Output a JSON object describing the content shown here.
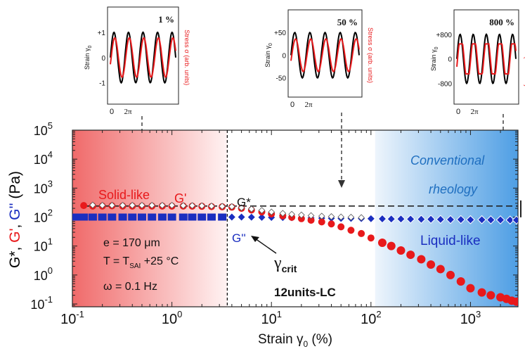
{
  "chart_data": [
    {
      "type": "scatter",
      "xscale": "log",
      "yscale": "log",
      "xlim": [
        0.1,
        3000
      ],
      "ylim": [
        0.08,
        100000
      ],
      "xlabel_main": "Strain γ",
      "xlabel_sub": "0",
      "xlabel_unit": "(%)",
      "ylabel_parts": [
        {
          "text": "G*, ",
          "color": "#000000"
        },
        {
          "text": "G'",
          "color": "#e8191b"
        },
        {
          "text": ", ",
          "color": "#000000"
        },
        {
          "text": "G''",
          "color": "#1a2ec0"
        },
        {
          "text": " (Pa)",
          "color": "#000000"
        }
      ],
      "x_ticks": [
        {
          "base": "10",
          "exp": "-1"
        },
        {
          "base": "10",
          "exp": "0"
        },
        {
          "base": "10",
          "exp": "1"
        },
        {
          "base": "10",
          "exp": "2"
        },
        {
          "base": "10",
          "exp": "3"
        }
      ],
      "y_ticks": [
        {
          "base": "10",
          "exp": "-1"
        },
        {
          "base": "10",
          "exp": "0"
        },
        {
          "base": "10",
          "exp": "1"
        },
        {
          "base": "10",
          "exp": "2"
        },
        {
          "base": "10",
          "exp": "3"
        },
        {
          "base": "10",
          "exp": "4"
        },
        {
          "base": "10",
          "exp": "5"
        }
      ],
      "regions": {
        "solid_end": 3.6,
        "conventional_start": 110
      },
      "gstar_level": 240,
      "series": [
        {
          "name": "G'",
          "color": "#e8191b",
          "x": [
            0.13,
            0.16,
            0.2,
            0.25,
            0.32,
            0.4,
            0.5,
            0.63,
            0.8,
            1.0,
            1.3,
            1.6,
            2.0,
            2.5,
            3.2,
            4,
            5,
            6.3,
            8,
            10,
            13,
            16,
            20,
            25,
            32,
            40,
            50,
            63,
            80,
            100,
            130,
            160,
            200,
            250,
            320,
            400,
            500,
            630,
            800,
            1000,
            1300,
            1600,
            2000,
            2300,
            2600,
            2900
          ],
          "y": [
            250,
            240,
            240,
            245,
            240,
            240,
            238,
            240,
            240,
            238,
            240,
            238,
            236,
            230,
            226,
            220,
            200,
            175,
            150,
            128,
            110,
            98,
            88,
            78,
            68,
            58,
            46,
            35,
            27,
            19,
            13,
            10,
            7,
            5,
            3.5,
            2.3,
            1.6,
            1.0,
            0.6,
            0.35,
            0.25,
            0.2,
            0.17,
            0.15,
            0.13,
            0.12
          ]
        },
        {
          "name": "G''",
          "color": "#1a2ec0",
          "x": [
            0.11,
            0.13,
            0.16,
            0.2,
            0.25,
            0.32,
            0.4,
            0.5,
            0.63,
            0.8,
            1.0,
            1.3,
            1.6,
            2.0,
            2.5,
            3.2,
            4,
            5,
            6.3,
            8,
            10,
            13,
            16,
            20,
            25,
            32,
            40,
            50,
            63,
            80,
            100,
            130,
            160,
            200,
            250,
            320,
            400,
            500,
            630,
            800,
            1000,
            1300,
            1600,
            2000,
            2500,
            2900
          ],
          "y": [
            100,
            100,
            100,
            100,
            100,
            100,
            100,
            100,
            100,
            100,
            100,
            100,
            100,
            100,
            100,
            100,
            100,
            100,
            99,
            98,
            97,
            96,
            95,
            94,
            93,
            92,
            91,
            90,
            90,
            89,
            88,
            87,
            86,
            86,
            85,
            84,
            84,
            83,
            82,
            82,
            81,
            81,
            80,
            80,
            79,
            79
          ]
        },
        {
          "name": "G*",
          "color": "#ffffff",
          "x": [
            0.16,
            0.2,
            0.25,
            0.32,
            0.4,
            0.5,
            0.63,
            0.8,
            1.0,
            1.3,
            1.6,
            2.0,
            2.5,
            3.2,
            4,
            5,
            6.3,
            8,
            10,
            13,
            16,
            20,
            25,
            32,
            40,
            50,
            63,
            80
          ],
          "y": [
            260,
            255,
            255,
            255,
            255,
            255,
            255,
            255,
            255,
            250,
            250,
            245,
            240,
            235,
            230,
            210,
            190,
            170,
            150,
            135,
            125,
            118,
            112,
            108,
            104,
            101,
            99,
            96
          ]
        }
      ],
      "annotations": {
        "solid_like": "Solid-like",
        "gprime": "G'",
        "gstar": "G*",
        "gdoubleprime": "G''",
        "conventional_1": "Conventional",
        "conventional_2": "rheology",
        "liquid_like": "Liquid-like",
        "crit_main": "γ",
        "crit_sub": "crit",
        "sample": "12units-LC",
        "param_e": "e = 170 μm",
        "param_T_main": "T = T",
        "param_T_sub": "SAI",
        "param_T_rest": " +25 °C",
        "param_w": "ω = 0.1 Hz"
      }
    },
    {
      "type": "line",
      "panel": "inset",
      "amplitude_label": "1 %",
      "yticks": [
        "+1",
        "0",
        "-1"
      ],
      "ylabel_left": "Strain γ",
      "ylabel_left_sub": "0",
      "ylabel_right": "Stress σ (arb. units)",
      "xticks": [
        "0",
        "2π"
      ],
      "series": [
        {
          "name": "Strain",
          "color": "#000000"
        },
        {
          "name": "Stress",
          "color": "#e8191b"
        }
      ]
    },
    {
      "type": "line",
      "panel": "inset",
      "amplitude_label": "50 %",
      "yticks": [
        "+50",
        "0",
        "-50"
      ],
      "ylabel_left": "Strain γ",
      "ylabel_left_sub": "0",
      "ylabel_right": "Stress σ (arb. units)",
      "xticks": [
        "0",
        "2π"
      ],
      "series": [
        {
          "name": "Strain",
          "color": "#000000"
        },
        {
          "name": "Stress",
          "color": "#e8191b"
        }
      ]
    },
    {
      "type": "line",
      "panel": "inset",
      "amplitude_label": "800 %",
      "yticks": [
        "+800",
        "0",
        "-800"
      ],
      "ylabel_left": "Strain γ",
      "ylabel_left_sub": "0",
      "ylabel_right": "Stress σ (arb. units)",
      "xticks": [
        "0",
        "2π"
      ],
      "series": [
        {
          "name": "Strain",
          "color": "#000000"
        },
        {
          "name": "Stress",
          "color": "#e8191b"
        }
      ]
    }
  ]
}
